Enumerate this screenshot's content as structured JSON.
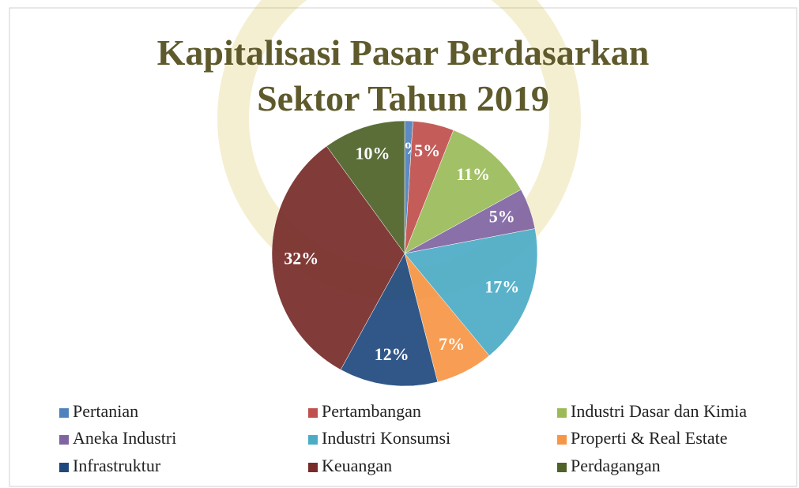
{
  "chart_data": {
    "type": "pie",
    "title": "Kapitalisasi Pasar Berdasarkan Sektor Tahun 2019",
    "categories": [
      "Pertanian",
      "Pertambangan",
      "Industri Dasar dan Kimia",
      "Aneka Industri",
      "Industri Konsumsi",
      "Properti & Real Estate",
      "Infrastruktur",
      "Keuangan",
      "Perdagangan"
    ],
    "values": [
      1,
      5,
      11,
      5,
      17,
      7,
      12,
      32,
      10
    ],
    "value_labels": [
      "1%",
      "5%",
      "11%",
      "5%",
      "17%",
      "7%",
      "12%",
      "32%",
      "10%"
    ],
    "colors": [
      "#4f81bd",
      "#c0504d",
      "#9bbb59",
      "#8064a2",
      "#4bacc6",
      "#f79646",
      "#1f497d",
      "#772c2a",
      "#4f6228"
    ],
    "legend": "bottom"
  }
}
